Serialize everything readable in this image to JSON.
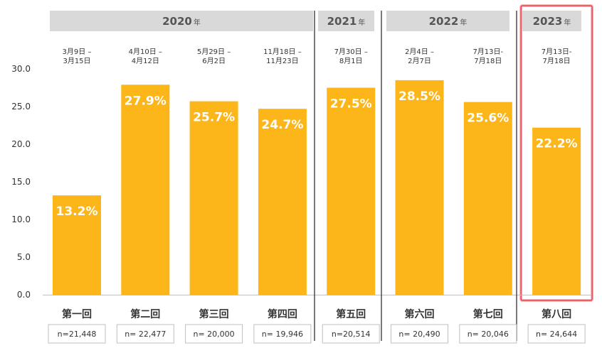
{
  "chart_data": {
    "type": "bar",
    "ylim": [
      0,
      30
    ],
    "yticks": [
      "0.0",
      "5.0",
      "10.0",
      "15.0",
      "20.0",
      "25.0",
      "30.0"
    ],
    "categories": [
      "第一回",
      "第二回",
      "第三回",
      "第四回",
      "第五回",
      "第六回",
      "第七回",
      "第八回"
    ],
    "values": [
      13.2,
      27.9,
      25.7,
      24.7,
      27.5,
      28.5,
      25.6,
      22.2
    ],
    "value_labels": [
      "13.2%",
      "27.9%",
      "25.7%",
      "24.7%",
      "27.5%",
      "28.5%",
      "25.6%",
      "22.2%"
    ],
    "periods": [
      [
        "3月9日 –",
        "3月15日"
      ],
      [
        "4月10日 –",
        "4月12日"
      ],
      [
        "5月29日 –",
        "6月2日"
      ],
      [
        "11月18日 –",
        "11月23日"
      ],
      [
        "7月30日 –",
        "8月1日"
      ],
      [
        "2月4日 –",
        "2月7日"
      ],
      [
        "7月13日-",
        "7月18日"
      ],
      [
        "7月13日-",
        "7月18日"
      ]
    ],
    "sample_sizes": [
      "n=21,448",
      "n= 22,477",
      "n= 20,000",
      "n= 19,946",
      "n=20,514",
      "n= 20,490",
      "n= 20,046",
      "n= 24,644"
    ],
    "year_groups": [
      {
        "year": "2020",
        "unit": "年",
        "from": 0,
        "to": 3
      },
      {
        "year": "2021",
        "unit": "年",
        "from": 4,
        "to": 4
      },
      {
        "year": "2022",
        "unit": "年",
        "from": 5,
        "to": 6
      },
      {
        "year": "2023",
        "unit": "年",
        "from": 7,
        "to": 7
      }
    ],
    "highlight_index": 7,
    "grid": false
  },
  "colors": {
    "bar": "#FDB61A",
    "value_label": "#FFFFFF",
    "year_header": "#D9D9D9",
    "highlight_border": "#E0303A",
    "highlight_fill": "#FCE8EA",
    "axis": "#BFBFBF",
    "separator": "#222222"
  }
}
